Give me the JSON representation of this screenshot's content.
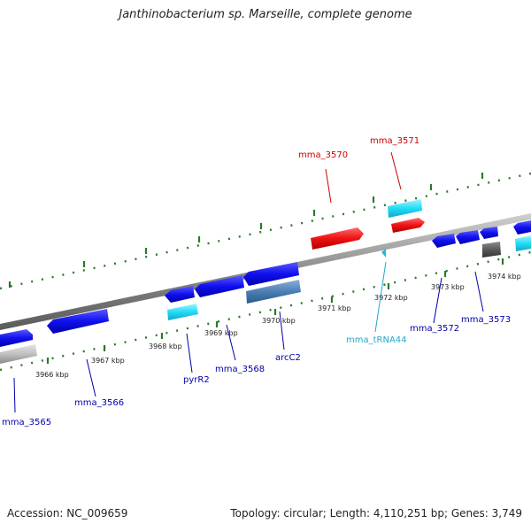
{
  "title": "Janthinobacterium sp. Marseille, complete genome",
  "accession": "Accession: NC_009659",
  "topology": "Topology: circular; Length: 4,110,251 bp; Genes: 3,749",
  "colors": {
    "forward_gene_label": "#cc0000",
    "reverse_gene_label": "#0000aa",
    "trna_label": "#22aacc",
    "tick": "#2a7a2a",
    "backbone": "#8a8a8a"
  },
  "kbp_labels": [
    "3966 kbp",
    "3967 kbp",
    "3968 kbp",
    "3969 kbp",
    "3970 kbp",
    "3971 kbp",
    "3972 kbp",
    "3973 kbp",
    "3974 kbp"
  ],
  "gene_labels": {
    "mma_3565": "mma_3565",
    "mma_3566": "mma_3566",
    "pyrR2": "pyrR2",
    "mma_3568": "mma_3568",
    "arcC2": "arcC2",
    "mma_3570": "mma_3570",
    "mma_3571": "mma_3571",
    "mma_tRNA44": "mma_tRNA44",
    "mma_3572": "mma_3572",
    "mma_3573": "mma_3573"
  }
}
